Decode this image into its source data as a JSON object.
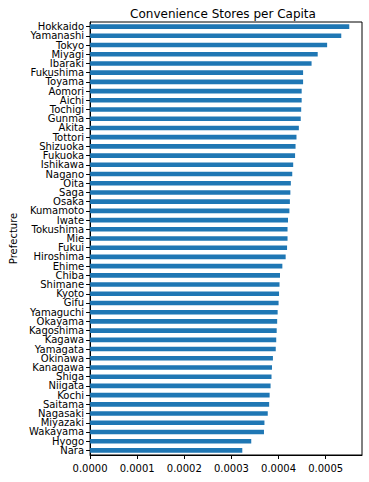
{
  "chart_data": {
    "type": "bar",
    "orientation": "horizontal",
    "title": "Convenience Stores per Capita",
    "y_label": "Prefecture",
    "categories": [
      "Nara",
      "Hyogo",
      "Wakayama",
      "Miyazaki",
      "Nagasaki",
      "Saitama",
      "Kochi",
      "Niigata",
      "Shiga",
      "Kanagawa",
      "Okinawa",
      "Yamagata",
      "Kagawa",
      "Kagoshima",
      "Okayama",
      "Yamaguchi",
      "Gifu",
      "Kyoto",
      "Shimane",
      "Chiba",
      "Ehime",
      "Hiroshima",
      "Fukui",
      "Mie",
      "Tokushima",
      "Iwate",
      "Kumamoto",
      "Osaka",
      "Saga",
      "Oita",
      "Nagano",
      "Ishikawa",
      "Fukuoka",
      "Shizuoka",
      "Tottori",
      "Akita",
      "Gunma",
      "Tochigi",
      "Aichi",
      "Aomori",
      "Toyama",
      "Fukushima",
      "Ibaraki",
      "Miyagi",
      "Tokyo",
      "Yamanashi",
      "Hokkaido"
    ],
    "values": [
      0.000323,
      0.000342,
      0.000369,
      0.00037,
      0.000377,
      0.00038,
      0.000381,
      0.000383,
      0.000385,
      0.000386,
      0.000388,
      0.000394,
      0.000395,
      0.000396,
      0.000397,
      0.000398,
      0.0004,
      0.000401,
      0.000402,
      0.000403,
      0.000408,
      0.000415,
      0.000418,
      0.000419,
      0.000419,
      0.00042,
      0.000423,
      0.000424,
      0.000425,
      0.000426,
      0.000429,
      0.000431,
      0.000435,
      0.000436,
      0.000438,
      0.000443,
      0.000447,
      0.000448,
      0.000449,
      0.000449,
      0.000452,
      0.000452,
      0.00047,
      0.000483,
      0.000503,
      0.000533,
      0.00055
    ],
    "color": "#1f77b4",
    "xlim": [
      0,
      0.000577
    ],
    "xticks": [
      {
        "value": 0,
        "label": "0.0000"
      },
      {
        "value": 0.0001,
        "label": "0.0001"
      },
      {
        "value": 0.0002,
        "label": "0.0002"
      },
      {
        "value": 0.0003,
        "label": "0.0003"
      },
      {
        "value": 0.0004,
        "label": "0.0004"
      },
      {
        "value": 0.0005,
        "label": "0.0005"
      }
    ],
    "grid": false
  }
}
